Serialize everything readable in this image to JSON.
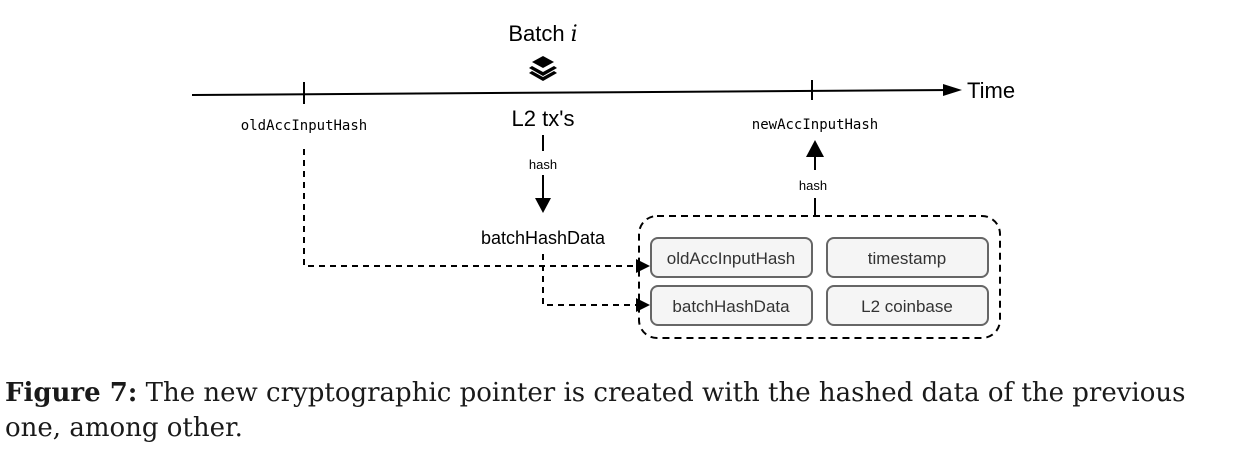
{
  "diagram": {
    "batch_label": "Batch",
    "batch_var": "i",
    "time_label": "Time",
    "old_hash_label": "oldAccInputHash",
    "new_hash_label": "newAccInputHash",
    "l2_txs_label": "L2 tx's",
    "hash_down_label": "hash",
    "hash_up_label": "hash",
    "batch_hash_data_label": "batchHashData",
    "box": {
      "old_acc_input_hash": "oldAccInputHash",
      "timestamp": "timestamp",
      "batch_hash_data": "batchHashData",
      "l2_coinbase": "L2 coinbase"
    },
    "colors": {
      "stroke": "#000000",
      "box_fill": "#f5f5f5",
      "box_stroke": "#666666",
      "box_text": "#333333"
    }
  },
  "caption": {
    "label": "Figure 7:",
    "text": "The new cryptographic pointer is created with the hashed data of the previous one, among other."
  }
}
